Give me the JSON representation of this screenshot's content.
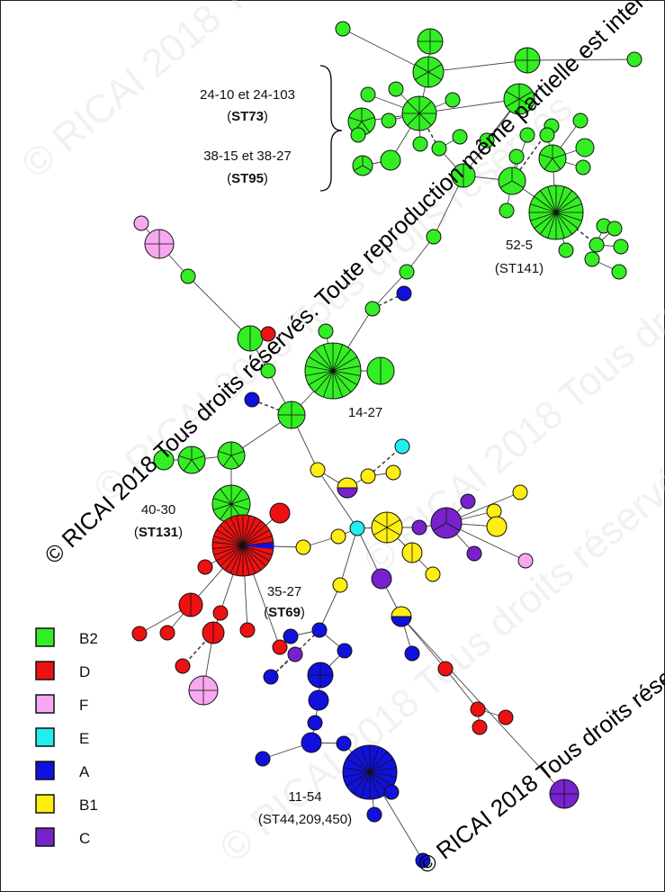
{
  "colors": {
    "B2": "#33ee22",
    "D": "#ee1111",
    "F": "#f8a8f0",
    "E": "#22eeee",
    "A": "#1111dd",
    "B1": "#ffee11",
    "C": "#7722cc"
  },
  "labels": {
    "st73_line1": "24-10 et 24-103",
    "st73_open": "(",
    "st73_code": "ST73",
    "st73_close": ")",
    "st95_line1": "38-15 et 38-27",
    "st95_open": "(",
    "st95_code": "ST95",
    "st95_close": ")",
    "l52_line1": "52-5",
    "l52_line2": "(ST141)",
    "l1427": "14-27",
    "l4030_line1": "40-30",
    "l4030_open": "(",
    "l4030_code": "ST131",
    "l4030_close": ")",
    "l3527_line1": "35-27",
    "l3527_open": "(",
    "l3527_code": "ST69",
    "l3527_close": ")",
    "l1154_line1": "11-54",
    "l1154_line2": "(ST44,209,450)"
  },
  "legend": [
    {
      "key": "B2",
      "label": "B2"
    },
    {
      "key": "D",
      "label": "D"
    },
    {
      "key": "F",
      "label": "F"
    },
    {
      "key": "E",
      "label": "E"
    },
    {
      "key": "A",
      "label": "A"
    },
    {
      "key": "B1",
      "label": "B1"
    },
    {
      "key": "C",
      "label": "C"
    }
  ],
  "watermark": {
    "main": "© RICAI 2018 Tous droits réservés. Toute reproduction même partielle est interdite",
    "secondary": "© RICAI 2018 Tous droits réservés"
  }
}
